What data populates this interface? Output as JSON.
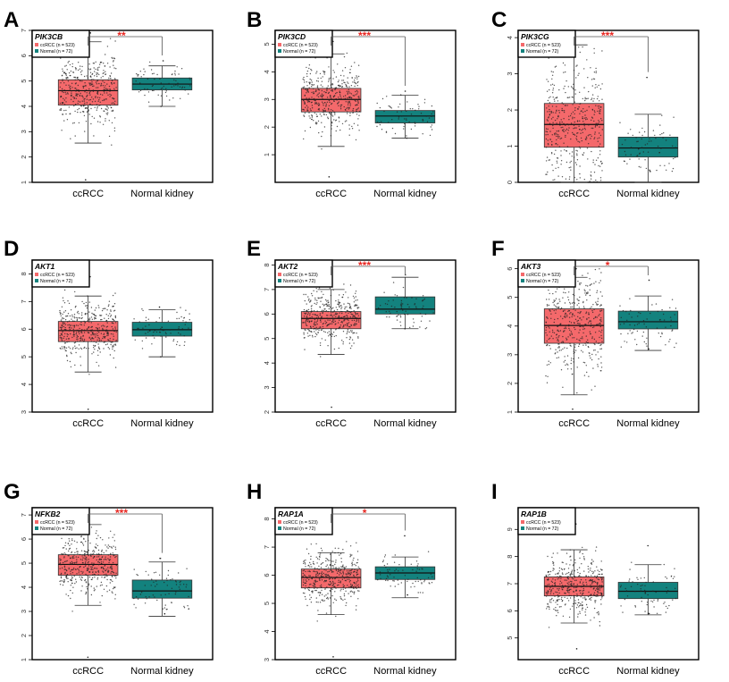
{
  "legend": {
    "ccrcc": "ccRCC (n = 523)",
    "normal": "Normal (n = 72)"
  },
  "colors": {
    "tumor": "#F4696B",
    "normal": "#13827E",
    "significance": "#E8251F",
    "frame": "#000000"
  },
  "chart_data": [
    {
      "panel_letter": "A",
      "type": "box",
      "gene": "PIK3CB",
      "categories": [
        "ccRCC",
        "Normal kidney"
      ],
      "significance": "**",
      "ylim": [
        1,
        7
      ],
      "yticks": [
        "1",
        "2",
        "3",
        "4",
        "5",
        "6",
        "7"
      ],
      "boxes": [
        {
          "whisker_low": 2.55,
          "q1": 4.05,
          "median": 4.62,
          "q3": 5.05,
          "whisker_high": 6.55,
          "outlier_range": [
            1.1,
            6.9
          ]
        },
        {
          "whisker_low": 4.0,
          "q1": 4.65,
          "median": 4.88,
          "q3": 5.12,
          "whisker_high": 5.6,
          "outlier_range": [
            4.0,
            5.8
          ]
        }
      ]
    },
    {
      "panel_letter": "B",
      "type": "box",
      "gene": "PIK3CD",
      "categories": [
        "ccRCC",
        "Normal kidney"
      ],
      "significance": "***",
      "ylim": [
        0,
        5.5
      ],
      "yticks": [
        "1",
        "2",
        "3",
        "4",
        "5"
      ],
      "boxes": [
        {
          "whisker_low": 1.3,
          "q1": 2.55,
          "median": 3.0,
          "q3": 3.4,
          "whisker_high": 4.65,
          "outlier_range": [
            0.2,
            5.1
          ]
        },
        {
          "whisker_low": 1.6,
          "q1": 2.15,
          "median": 2.4,
          "q3": 2.6,
          "whisker_high": 3.15,
          "outlier_range": [
            1.6,
            3.3
          ]
        }
      ]
    },
    {
      "panel_letter": "C",
      "type": "box",
      "gene": "PIK3CG",
      "categories": [
        "ccRCC",
        "Normal kidney"
      ],
      "significance": "***",
      "ylim": [
        0,
        4.2
      ],
      "yticks": [
        "0",
        "1",
        "2",
        "3",
        "4"
      ],
      "boxes": [
        {
          "whisker_low": 0.0,
          "q1": 0.97,
          "median": 1.6,
          "q3": 2.18,
          "whisker_high": 3.8,
          "outlier_range": [
            0.0,
            4.1
          ]
        },
        {
          "whisker_low": 0.0,
          "q1": 0.7,
          "median": 0.95,
          "q3": 1.25,
          "whisker_high": 1.88,
          "outlier_range": [
            0.3,
            2.9
          ]
        }
      ]
    },
    {
      "panel_letter": "D",
      "type": "box",
      "gene": "AKT1",
      "categories": [
        "ccRCC",
        "Normal kidney"
      ],
      "significance": "",
      "ylim": [
        3,
        8.5
      ],
      "yticks": [
        "3",
        "4",
        "5",
        "6",
        "7",
        "8"
      ],
      "boxes": [
        {
          "whisker_low": 4.45,
          "q1": 5.55,
          "median": 5.95,
          "q3": 6.28,
          "whisker_high": 7.2,
          "outlier_range": [
            3.1,
            7.9
          ]
        },
        {
          "whisker_low": 5.0,
          "q1": 5.75,
          "median": 5.98,
          "q3": 6.25,
          "whisker_high": 6.7,
          "outlier_range": [
            5.0,
            6.8
          ]
        }
      ]
    },
    {
      "panel_letter": "E",
      "type": "box",
      "gene": "AKT2",
      "categories": [
        "ccRCC",
        "Normal kidney"
      ],
      "significance": "***",
      "ylim": [
        2,
        8.2
      ],
      "yticks": [
        "2",
        "3",
        "4",
        "5",
        "6",
        "7",
        "8"
      ],
      "boxes": [
        {
          "whisker_low": 4.35,
          "q1": 5.4,
          "median": 5.82,
          "q3": 6.1,
          "whisker_high": 7.0,
          "outlier_range": [
            2.2,
            7.3
          ]
        },
        {
          "whisker_low": 5.4,
          "q1": 6.0,
          "median": 6.2,
          "q3": 6.7,
          "whisker_high": 7.5,
          "outlier_range": [
            5.4,
            7.6
          ]
        }
      ]
    },
    {
      "panel_letter": "F",
      "type": "box",
      "gene": "AKT3",
      "categories": [
        "ccRCC",
        "Normal kidney"
      ],
      "significance": "*",
      "ylim": [
        1,
        6.3
      ],
      "yticks": [
        "1",
        "2",
        "3",
        "4",
        "5",
        "6"
      ],
      "boxes": [
        {
          "whisker_low": 1.6,
          "q1": 3.4,
          "median": 4.02,
          "q3": 4.6,
          "whisker_high": 5.7,
          "outlier_range": [
            1.1,
            6.0
          ]
        },
        {
          "whisker_low": 3.15,
          "q1": 3.9,
          "median": 4.15,
          "q3": 4.52,
          "whisker_high": 5.05,
          "outlier_range": [
            3.2,
            5.6
          ]
        }
      ]
    },
    {
      "panel_letter": "G",
      "type": "box",
      "gene": "NFKB2",
      "categories": [
        "ccRCC",
        "Normal kidney"
      ],
      "significance": "***",
      "ylim": [
        1,
        7.3
      ],
      "yticks": [
        "1",
        "2",
        "3",
        "4",
        "5",
        "6",
        "7"
      ],
      "boxes": [
        {
          "whisker_low": 3.25,
          "q1": 4.5,
          "median": 4.95,
          "q3": 5.35,
          "whisker_high": 6.6,
          "outlier_range": [
            1.1,
            7.0
          ]
        },
        {
          "whisker_low": 2.8,
          "q1": 3.55,
          "median": 3.85,
          "q3": 4.3,
          "whisker_high": 5.05,
          "outlier_range": [
            2.9,
            5.2
          ]
        }
      ]
    },
    {
      "panel_letter": "H",
      "type": "box",
      "gene": "RAP1A",
      "categories": [
        "ccRCC",
        "Normal kidney"
      ],
      "significance": "*",
      "ylim": [
        3,
        8.4
      ],
      "yticks": [
        "3",
        "4",
        "5",
        "6",
        "7",
        "8"
      ],
      "boxes": [
        {
          "whisker_low": 4.6,
          "q1": 5.55,
          "median": 5.92,
          "q3": 6.22,
          "whisker_high": 6.8,
          "outlier_range": [
            3.1,
            8.0
          ]
        },
        {
          "whisker_low": 5.2,
          "q1": 5.85,
          "median": 6.08,
          "q3": 6.3,
          "whisker_high": 6.65,
          "outlier_range": [
            5.3,
            7.4
          ]
        }
      ]
    },
    {
      "panel_letter": "I",
      "type": "box",
      "gene": "RAP1B",
      "categories": [
        "ccRCC",
        "Normal kidney"
      ],
      "significance": "",
      "ylim": [
        4.2,
        9.8
      ],
      "yticks": [
        "5",
        "6",
        "7",
        "8",
        "9"
      ],
      "boxes": [
        {
          "whisker_low": 5.55,
          "q1": 6.55,
          "median": 6.9,
          "q3": 7.25,
          "whisker_high": 8.25,
          "outlier_range": [
            4.6,
            9.2
          ]
        },
        {
          "whisker_low": 5.85,
          "q1": 6.45,
          "median": 6.72,
          "q3": 7.05,
          "whisker_high": 7.7,
          "outlier_range": [
            5.9,
            8.4
          ]
        }
      ]
    }
  ]
}
